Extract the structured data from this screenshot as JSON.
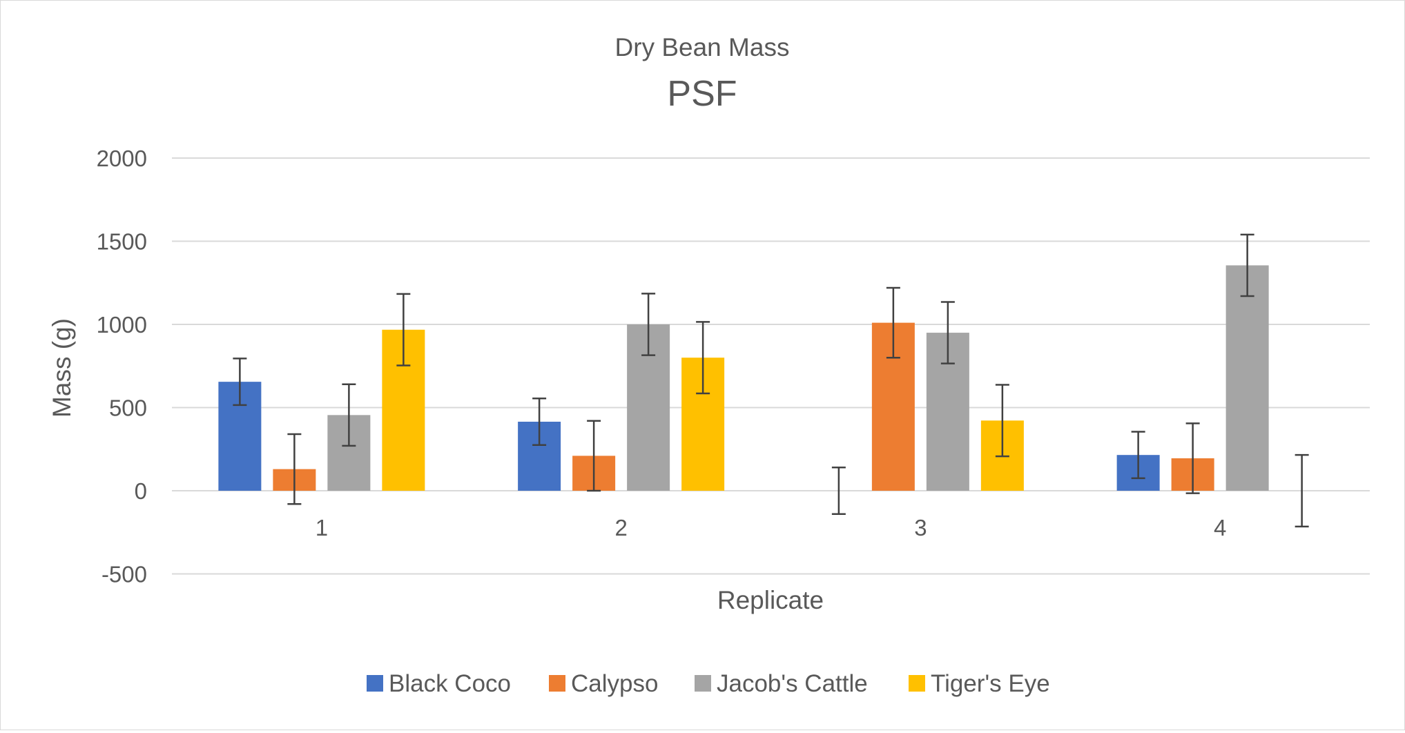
{
  "chart_data": {
    "type": "bar",
    "title": "Dry Bean Mass",
    "subtitle": "PSF",
    "xlabel": "Replicate",
    "ylabel": "Mass (g)",
    "ylim": [
      -500,
      2000
    ],
    "yticks": [
      2000,
      1500,
      1000,
      500,
      0,
      -500
    ],
    "grid": true,
    "legend_position": "bottom",
    "categories": [
      "1",
      "2",
      "3",
      "4"
    ],
    "series": [
      {
        "name": "Black Coco",
        "color": "#4472C4",
        "values": [
          655,
          415,
          0,
          215
        ],
        "errors": [
          140,
          140,
          140,
          140
        ]
      },
      {
        "name": "Calypso",
        "color": "#ED7D31",
        "values": [
          130,
          210,
          1010,
          195
        ],
        "errors": [
          210,
          210,
          210,
          210
        ]
      },
      {
        "name": "Jacob's Cattle",
        "color": "#A5A5A5",
        "values": [
          455,
          1000,
          950,
          1355
        ],
        "errors": [
          185,
          185,
          185,
          185
        ]
      },
      {
        "name": "Tiger's Eye",
        "color": "#FFC000",
        "values": [
          968,
          800,
          422,
          0
        ],
        "errors": [
          215,
          215,
          215,
          215
        ]
      }
    ]
  }
}
